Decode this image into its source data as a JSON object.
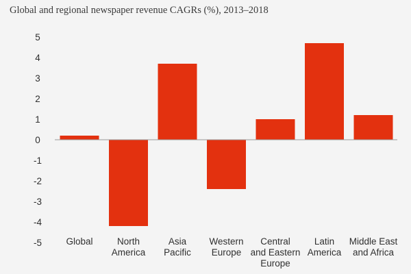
{
  "title": "Global and regional newspaper revenue CAGRs (%), 2013–2018",
  "chart_data": {
    "type": "bar",
    "title": "Global and regional newspaper revenue CAGRs (%), 2013–2018",
    "xlabel": "",
    "ylabel": "",
    "categories": [
      [
        "Global"
      ],
      [
        "North",
        "America"
      ],
      [
        "Asia",
        "Pacific"
      ],
      [
        "Western",
        "Europe"
      ],
      [
        "Central",
        "and Eastern",
        "Europe"
      ],
      [
        "Latin",
        "America"
      ],
      [
        "Middle East",
        "and Africa"
      ]
    ],
    "values": [
      0.2,
      -4.2,
      3.7,
      -2.4,
      1.0,
      4.7,
      1.2
    ],
    "ylim": [
      -5,
      5
    ],
    "yticks": [
      5,
      4,
      3,
      2,
      1,
      0,
      -1,
      -2,
      -3,
      -4,
      -5
    ],
    "grid": false,
    "legend": "none",
    "bar_color": "#e3310f",
    "axis_color": "#9a9a9a"
  }
}
